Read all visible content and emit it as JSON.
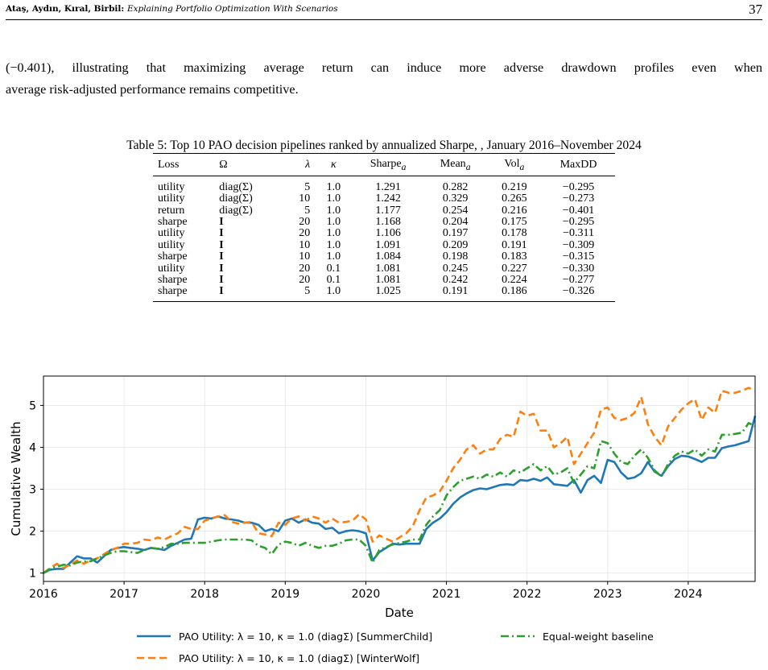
{
  "header": {
    "authors": "Ataş, Aydın, Kıral, Birbil:",
    "title": "Explaining Portfolio Optimization With Scenarios",
    "page": "37"
  },
  "paragraph": {
    "line1": "(−0.401), illustrating that maximizing average return can induce more adverse drawdown profiles even when",
    "line2": "average risk-adjusted performance remains competitive."
  },
  "caption": "Table 5: Top 10 PAO decision pipelines ranked by annualized Sharpe, , January 2016–November 2024",
  "table": {
    "headers": {
      "loss": "Loss",
      "omega": "Ω",
      "lambda": "λ",
      "kappa": "κ",
      "sharpe": "Sharpe",
      "mean": "Mean",
      "vol": "Vol",
      "maxdd": "MaxDD",
      "sub": "a"
    },
    "rows": [
      {
        "loss": "utility",
        "omega": "diag(Σ)",
        "omega_bold": false,
        "lambda": "5",
        "kappa": "1.0",
        "sharpe": "1.291",
        "mean": "0.282",
        "vol": "0.219",
        "maxdd": "−0.295"
      },
      {
        "loss": "utility",
        "omega": "diag(Σ)",
        "omega_bold": false,
        "lambda": "10",
        "kappa": "1.0",
        "sharpe": "1.242",
        "mean": "0.329",
        "vol": "0.265",
        "maxdd": "−0.273"
      },
      {
        "loss": "return",
        "omega": "diag(Σ)",
        "omega_bold": false,
        "lambda": "5",
        "kappa": "1.0",
        "sharpe": "1.177",
        "mean": "0.254",
        "vol": "0.216",
        "maxdd": "−0.401"
      },
      {
        "loss": "sharpe",
        "omega": "I",
        "omega_bold": true,
        "lambda": "20",
        "kappa": "1.0",
        "sharpe": "1.168",
        "mean": "0.204",
        "vol": "0.175",
        "maxdd": "−0.295"
      },
      {
        "loss": "utility",
        "omega": "I",
        "omega_bold": true,
        "lambda": "20",
        "kappa": "1.0",
        "sharpe": "1.106",
        "mean": "0.197",
        "vol": "0.178",
        "maxdd": "−0.311"
      },
      {
        "loss": "utility",
        "omega": "I",
        "omega_bold": true,
        "lambda": "10",
        "kappa": "1.0",
        "sharpe": "1.091",
        "mean": "0.209",
        "vol": "0.191",
        "maxdd": "−0.309"
      },
      {
        "loss": "sharpe",
        "omega": "I",
        "omega_bold": true,
        "lambda": "10",
        "kappa": "1.0",
        "sharpe": "1.084",
        "mean": "0.198",
        "vol": "0.183",
        "maxdd": "−0.315"
      },
      {
        "loss": "utility",
        "omega": "I",
        "omega_bold": true,
        "lambda": "20",
        "kappa": "0.1",
        "sharpe": "1.081",
        "mean": "0.245",
        "vol": "0.227",
        "maxdd": "−0.330"
      },
      {
        "loss": "sharpe",
        "omega": "I",
        "omega_bold": true,
        "lambda": "20",
        "kappa": "0.1",
        "sharpe": "1.081",
        "mean": "0.242",
        "vol": "0.224",
        "maxdd": "−0.277"
      },
      {
        "loss": "sharpe",
        "omega": "I",
        "omega_bold": true,
        "lambda": "5",
        "kappa": "1.0",
        "sharpe": "1.025",
        "mean": "0.191",
        "vol": "0.186",
        "maxdd": "−0.326"
      }
    ]
  },
  "chart_data": {
    "type": "line",
    "title": "",
    "xlabel": "Date",
    "ylabel": "Cumulative Wealth",
    "xlim": [
      2016.0,
      2024.83
    ],
    "ylim": [
      0.8,
      5.7
    ],
    "xticks": [
      "2016",
      "2017",
      "2018",
      "2019",
      "2020",
      "2021",
      "2022",
      "2023",
      "2024"
    ],
    "yticks": [
      "1",
      "2",
      "3",
      "4",
      "5"
    ],
    "grid": true,
    "legend_position": "bottom-center",
    "series": [
      {
        "name": "PAO Utility: λ = 10, κ = 1.0 (diagΣ) [SummerChild]",
        "color": "#1f77b4",
        "style": "solid",
        "x": [
          2016.0,
          2016.083,
          2016.167,
          2016.25,
          2016.333,
          2016.417,
          2016.5,
          2016.583,
          2016.667,
          2016.75,
          2016.833,
          2016.917,
          2017.0,
          2017.083,
          2017.167,
          2017.25,
          2017.333,
          2017.417,
          2017.5,
          2017.583,
          2017.667,
          2017.75,
          2017.833,
          2017.917,
          2018.0,
          2018.083,
          2018.167,
          2018.25,
          2018.333,
          2018.417,
          2018.5,
          2018.583,
          2018.667,
          2018.75,
          2018.833,
          2018.917,
          2019.0,
          2019.083,
          2019.167,
          2019.25,
          2019.333,
          2019.417,
          2019.5,
          2019.583,
          2019.667,
          2019.75,
          2019.833,
          2019.917,
          2020.0,
          2020.083,
          2020.167,
          2020.25,
          2020.333,
          2020.417,
          2020.5,
          2020.583,
          2020.667,
          2020.75,
          2020.833,
          2020.917,
          2021.0,
          2021.083,
          2021.167,
          2021.25,
          2021.333,
          2021.417,
          2021.5,
          2021.583,
          2021.667,
          2021.75,
          2021.833,
          2021.917,
          2022.0,
          2022.083,
          2022.167,
          2022.25,
          2022.333,
          2022.417,
          2022.5,
          2022.583,
          2022.667,
          2022.75,
          2022.833,
          2022.917,
          2023.0,
          2023.083,
          2023.167,
          2023.25,
          2023.333,
          2023.417,
          2023.5,
          2023.583,
          2023.667,
          2023.75,
          2023.833,
          2023.917,
          2024.0,
          2024.083,
          2024.167,
          2024.25,
          2024.333,
          2024.417,
          2024.5,
          2024.583,
          2024.667,
          2024.75,
          2024.83
        ],
        "y": [
          1.0,
          1.08,
          1.1,
          1.1,
          1.25,
          1.4,
          1.35,
          1.35,
          1.25,
          1.4,
          1.55,
          1.6,
          1.62,
          1.6,
          1.58,
          1.55,
          1.6,
          1.58,
          1.55,
          1.65,
          1.72,
          1.8,
          1.82,
          2.28,
          2.32,
          2.3,
          2.35,
          2.3,
          2.28,
          2.25,
          2.2,
          2.2,
          2.15,
          2.0,
          2.05,
          2.0,
          2.25,
          2.3,
          2.2,
          2.28,
          2.2,
          2.18,
          2.05,
          2.08,
          1.95,
          2.0,
          2.02,
          2.0,
          1.95,
          1.3,
          1.5,
          1.6,
          1.7,
          1.68,
          1.7,
          1.7,
          1.7,
          2.05,
          2.2,
          2.3,
          2.45,
          2.65,
          2.8,
          2.9,
          2.98,
          3.02,
          3.0,
          3.05,
          3.1,
          3.12,
          3.1,
          3.22,
          3.2,
          3.25,
          3.2,
          3.28,
          3.12,
          3.1,
          3.08,
          3.22,
          2.92,
          3.22,
          3.32,
          3.15,
          3.7,
          3.65,
          3.4,
          3.25,
          3.28,
          3.38,
          3.65,
          3.42,
          3.32,
          3.55,
          3.72,
          3.8,
          3.78,
          3.72,
          3.65,
          3.75,
          3.75,
          3.98,
          4.02,
          4.05,
          4.1,
          4.15,
          4.75
        ]
      },
      {
        "name": "PAO Utility: λ = 10, κ = 1.0 (diagΣ) [WinterWolf]",
        "color": "#ff7f0e",
        "style": "dashed",
        "x": [
          2016.0,
          2016.083,
          2016.167,
          2016.25,
          2016.333,
          2016.417,
          2016.5,
          2016.583,
          2016.667,
          2016.75,
          2016.833,
          2016.917,
          2017.0,
          2017.083,
          2017.167,
          2017.25,
          2017.333,
          2017.417,
          2017.5,
          2017.583,
          2017.667,
          2017.75,
          2017.833,
          2017.917,
          2018.0,
          2018.083,
          2018.167,
          2018.25,
          2018.333,
          2018.417,
          2018.5,
          2018.583,
          2018.667,
          2018.75,
          2018.833,
          2018.917,
          2019.0,
          2019.083,
          2019.167,
          2019.25,
          2019.333,
          2019.417,
          2019.5,
          2019.583,
          2019.667,
          2019.75,
          2019.833,
          2019.917,
          2020.0,
          2020.083,
          2020.167,
          2020.25,
          2020.333,
          2020.417,
          2020.5,
          2020.583,
          2020.667,
          2020.75,
          2020.833,
          2020.917,
          2021.0,
          2021.083,
          2021.167,
          2021.25,
          2021.333,
          2021.417,
          2021.5,
          2021.583,
          2021.667,
          2021.75,
          2021.833,
          2021.917,
          2022.0,
          2022.083,
          2022.167,
          2022.25,
          2022.333,
          2022.417,
          2022.5,
          2022.583,
          2022.667,
          2022.75,
          2022.833,
          2022.917,
          2023.0,
          2023.083,
          2023.167,
          2023.25,
          2023.333,
          2023.417,
          2023.5,
          2023.583,
          2023.667,
          2023.75,
          2023.833,
          2023.917,
          2024.0,
          2024.083,
          2024.167,
          2024.25,
          2024.333,
          2024.417,
          2024.5,
          2024.583,
          2024.667,
          2024.75,
          2024.83
        ],
        "y": [
          1.0,
          1.12,
          1.22,
          1.12,
          1.2,
          1.3,
          1.22,
          1.3,
          1.35,
          1.45,
          1.55,
          1.6,
          1.7,
          1.7,
          1.72,
          1.8,
          1.78,
          1.85,
          1.8,
          1.88,
          1.95,
          2.1,
          2.05,
          2.05,
          2.25,
          2.3,
          2.35,
          2.38,
          2.22,
          2.18,
          2.2,
          2.22,
          1.95,
          1.92,
          1.88,
          2.2,
          2.15,
          2.3,
          2.35,
          2.25,
          2.35,
          2.3,
          2.2,
          2.3,
          2.2,
          2.22,
          2.25,
          2.4,
          2.28,
          1.75,
          1.9,
          1.82,
          1.75,
          1.85,
          1.95,
          2.12,
          2.5,
          2.8,
          2.85,
          2.95,
          3.2,
          3.5,
          3.7,
          3.95,
          4.05,
          3.85,
          3.95,
          3.95,
          4.2,
          4.3,
          4.25,
          4.85,
          4.75,
          4.8,
          4.4,
          4.4,
          4.0,
          4.1,
          4.25,
          3.6,
          3.85,
          4.1,
          4.35,
          4.9,
          4.95,
          4.7,
          4.65,
          4.7,
          4.82,
          5.2,
          4.55,
          4.25,
          4.05,
          4.5,
          4.7,
          4.9,
          5.05,
          5.15,
          4.65,
          4.95,
          4.82,
          5.35,
          5.3,
          5.3,
          5.35,
          5.42,
          5.35
        ]
      },
      {
        "name": "Equal-weight baseline",
        "color": "#2ca02c",
        "style": "dashdot",
        "x": [
          2016.0,
          2016.083,
          2016.167,
          2016.25,
          2016.333,
          2016.417,
          2016.5,
          2016.583,
          2016.667,
          2016.75,
          2016.833,
          2016.917,
          2017.0,
          2017.083,
          2017.167,
          2017.25,
          2017.333,
          2017.417,
          2017.5,
          2017.583,
          2017.667,
          2017.75,
          2017.833,
          2017.917,
          2018.0,
          2018.083,
          2018.167,
          2018.25,
          2018.333,
          2018.417,
          2018.5,
          2018.583,
          2018.667,
          2018.75,
          2018.833,
          2018.917,
          2019.0,
          2019.083,
          2019.167,
          2019.25,
          2019.333,
          2019.417,
          2019.5,
          2019.583,
          2019.667,
          2019.75,
          2019.833,
          2019.917,
          2020.0,
          2020.083,
          2020.167,
          2020.25,
          2020.333,
          2020.417,
          2020.5,
          2020.583,
          2020.667,
          2020.75,
          2020.833,
          2020.917,
          2021.0,
          2021.083,
          2021.167,
          2021.25,
          2021.333,
          2021.417,
          2021.5,
          2021.583,
          2021.667,
          2021.75,
          2021.833,
          2021.917,
          2022.0,
          2022.083,
          2022.167,
          2022.25,
          2022.333,
          2022.417,
          2022.5,
          2022.583,
          2022.667,
          2022.75,
          2022.833,
          2022.917,
          2023.0,
          2023.083,
          2023.167,
          2023.25,
          2023.333,
          2023.417,
          2023.5,
          2023.583,
          2023.667,
          2023.75,
          2023.833,
          2023.917,
          2024.0,
          2024.083,
          2024.167,
          2024.25,
          2024.333,
          2024.417,
          2024.5,
          2024.583,
          2024.667,
          2024.75,
          2024.83
        ],
        "y": [
          1.0,
          1.1,
          1.15,
          1.2,
          1.18,
          1.25,
          1.28,
          1.28,
          1.35,
          1.42,
          1.48,
          1.52,
          1.52,
          1.5,
          1.48,
          1.55,
          1.6,
          1.58,
          1.62,
          1.7,
          1.7,
          1.72,
          1.72,
          1.72,
          1.72,
          1.75,
          1.78,
          1.8,
          1.8,
          1.8,
          1.8,
          1.78,
          1.65,
          1.6,
          1.45,
          1.68,
          1.75,
          1.72,
          1.65,
          1.72,
          1.65,
          1.6,
          1.65,
          1.65,
          1.7,
          1.78,
          1.8,
          1.8,
          1.65,
          1.25,
          1.55,
          1.62,
          1.68,
          1.72,
          1.75,
          1.8,
          1.8,
          2.15,
          2.35,
          2.5,
          2.85,
          3.05,
          3.2,
          3.25,
          3.3,
          3.25,
          3.35,
          3.3,
          3.4,
          3.3,
          3.45,
          3.4,
          3.5,
          3.6,
          3.45,
          3.55,
          3.35,
          3.4,
          3.5,
          3.15,
          3.35,
          3.55,
          3.5,
          4.15,
          4.1,
          3.85,
          3.65,
          3.6,
          3.8,
          3.95,
          3.75,
          3.45,
          3.3,
          3.6,
          3.8,
          3.9,
          3.85,
          3.95,
          3.8,
          3.95,
          3.9,
          4.3,
          4.3,
          4.32,
          4.35,
          4.58,
          4.5
        ]
      }
    ]
  }
}
